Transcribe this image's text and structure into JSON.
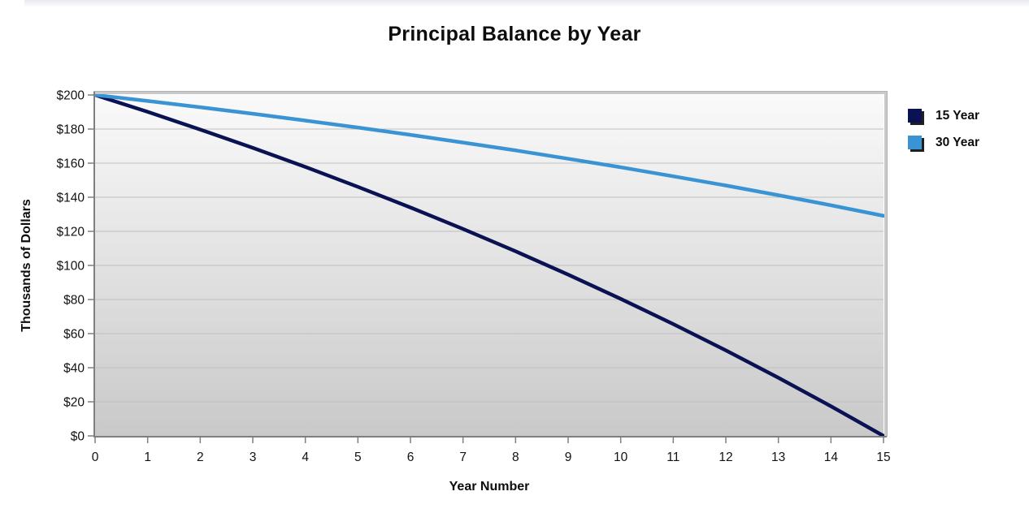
{
  "chart_data": {
    "type": "line",
    "title": "Principal Balance by Year",
    "xlabel": "Year Number",
    "ylabel": "Thousands of Dollars",
    "x": [
      0,
      1,
      2,
      3,
      4,
      5,
      6,
      7,
      8,
      9,
      10,
      11,
      12,
      13,
      14,
      15
    ],
    "xlim": [
      0,
      15
    ],
    "ylim": [
      0,
      200
    ],
    "xticks": [
      0,
      1,
      2,
      3,
      4,
      5,
      6,
      7,
      8,
      9,
      10,
      11,
      12,
      13,
      14,
      15
    ],
    "xtick_labels": [
      "0",
      "1",
      "2",
      "3",
      "4",
      "5",
      "6",
      "7",
      "8",
      "9",
      "10",
      "11",
      "12",
      "13",
      "14",
      "15"
    ],
    "yticks": [
      0,
      20,
      40,
      60,
      80,
      100,
      120,
      140,
      160,
      180,
      200
    ],
    "ytick_labels": [
      "$0",
      "$20",
      "$40",
      "$60",
      "$80",
      "$100",
      "$120",
      "$140",
      "$160",
      "$180",
      "$200"
    ],
    "grid": "horizontal",
    "legend_position": "right",
    "series": [
      {
        "name": "15 Year",
        "color": "#0a1254",
        "values": [
          200,
          190.1,
          179.7,
          169.0,
          157.8,
          146.1,
          134.0,
          121.4,
          108.3,
          94.6,
          80.4,
          65.6,
          50.2,
          34.1,
          17.4,
          0
        ]
      },
      {
        "name": "30 Year",
        "color": "#3a94d4",
        "values": [
          200,
          196.5,
          192.8,
          189.0,
          185.0,
          180.9,
          176.6,
          172.1,
          167.5,
          162.6,
          157.6,
          152.3,
          146.9,
          141.2,
          135.3,
          129.1
        ]
      }
    ]
  }
}
